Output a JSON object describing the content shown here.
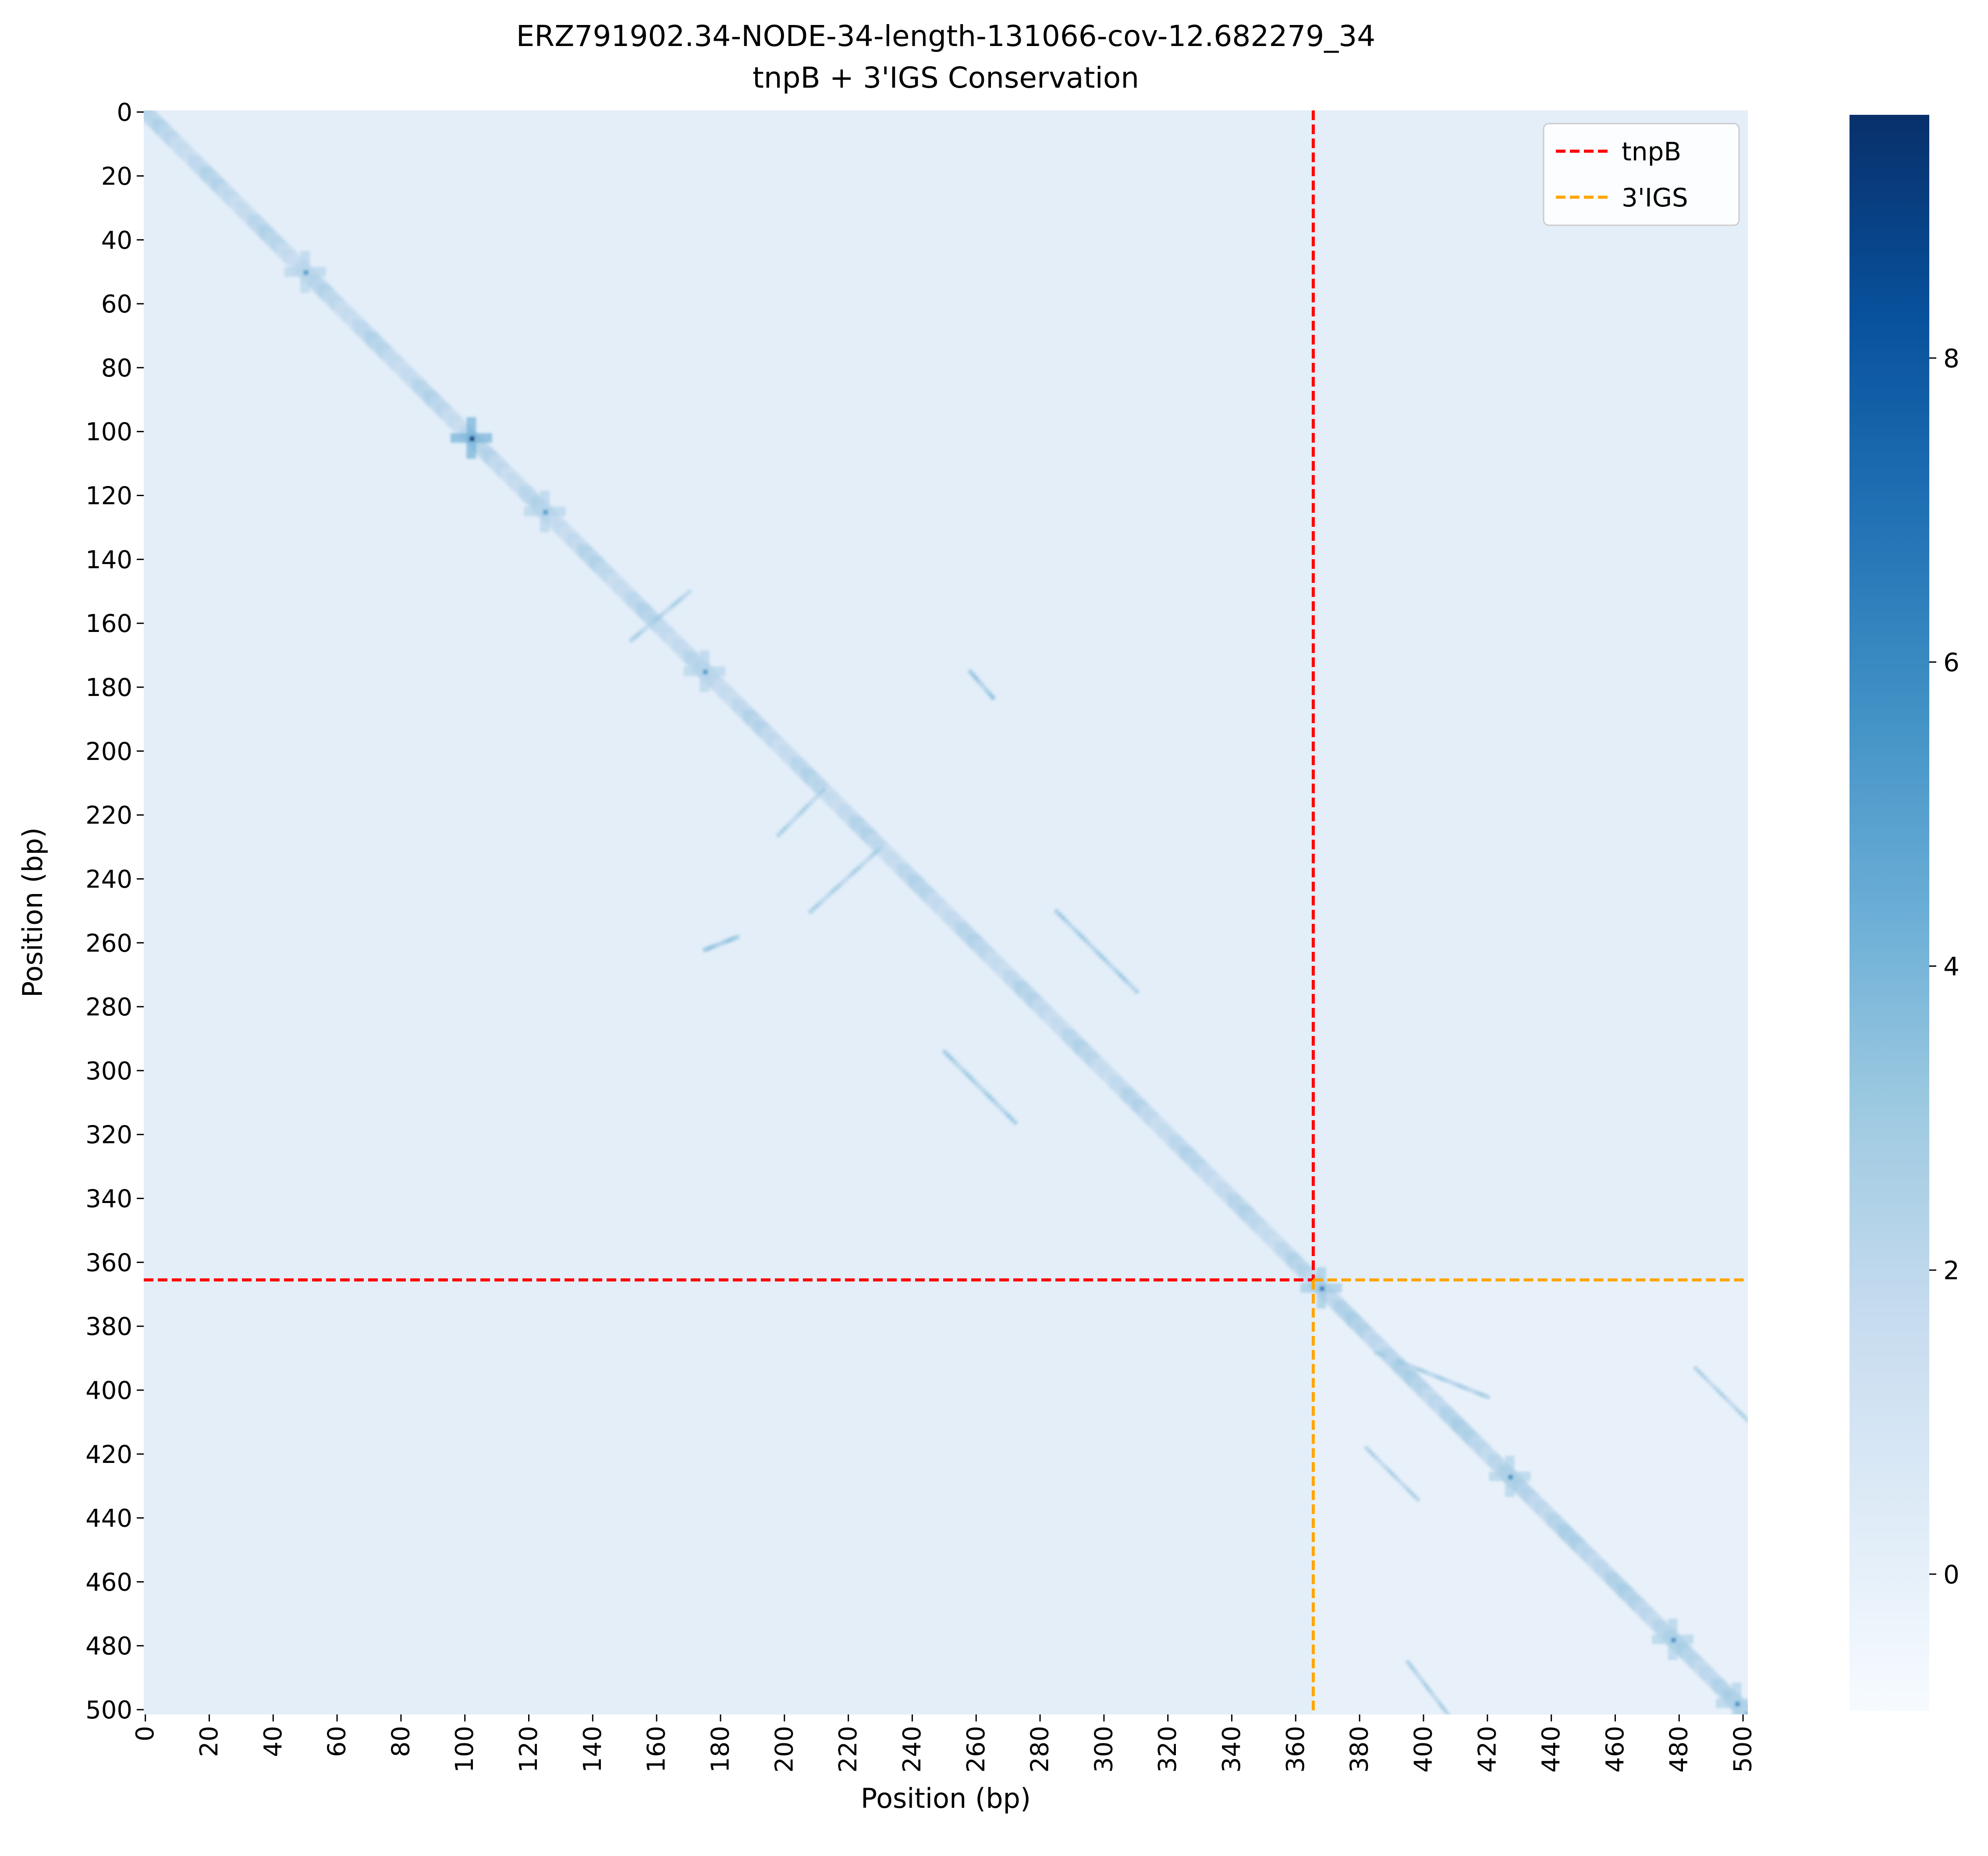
{
  "chart_data": {
    "type": "heatmap",
    "title": "ERZ791902.34-NODE-34-length-131066-cov-12.682279_34",
    "subtitle": "tnpB + 3'IGS Conservation",
    "xlabel": "Position (bp)",
    "ylabel": "Position (bp)",
    "xlim": [
      0,
      502
    ],
    "ylim": [
      0,
      502
    ],
    "x_ticks": [
      "0",
      "20",
      "40",
      "60",
      "80",
      "100",
      "120",
      "140",
      "160",
      "180",
      "200",
      "220",
      "240",
      "260",
      "280",
      "300",
      "320",
      "340",
      "360",
      "380",
      "400",
      "420",
      "440",
      "460",
      "480",
      "500"
    ],
    "y_ticks": [
      "0",
      "20",
      "40",
      "60",
      "80",
      "100",
      "120",
      "140",
      "160",
      "180",
      "200",
      "220",
      "240",
      "260",
      "280",
      "300",
      "320",
      "340",
      "360",
      "380",
      "400",
      "420",
      "440",
      "460",
      "480",
      "500"
    ],
    "colorbar": {
      "colormap": "Blues",
      "range": [
        -0.9,
        9.6
      ],
      "ticks": [
        "0",
        "2",
        "4",
        "6",
        "8"
      ],
      "tick_values": [
        0,
        2,
        4,
        6,
        8
      ]
    },
    "boundaries": [
      {
        "name": "tnpB",
        "position": 366,
        "color": "#ff0000"
      },
      {
        "name": "3'IGS",
        "position": 366,
        "color": "#ffa500"
      }
    ],
    "legend_placement": "upper-right",
    "features": {
      "diagonal_strength": 3.5,
      "hotspots": [
        {
          "x": 102,
          "y": 102,
          "value": 9.2
        },
        {
          "x": 368,
          "y": 368,
          "value": 6.5
        },
        {
          "x": 50,
          "y": 50,
          "value": 5.0
        },
        {
          "x": 125,
          "y": 125,
          "value": 5.0
        },
        {
          "x": 175,
          "y": 175,
          "value": 5.0
        },
        {
          "x": 427,
          "y": 427,
          "value": 5.5
        },
        {
          "x": 478,
          "y": 478,
          "value": 5.5
        },
        {
          "x": 498,
          "y": 498,
          "value": 5.5
        }
      ],
      "off_diagonal_streaks": [
        {
          "x": [
            152,
            170
          ],
          "y": [
            165,
            150
          ],
          "value": 2.5
        },
        {
          "x": [
            198,
            212
          ],
          "y": [
            226,
            212
          ],
          "value": 2.5
        },
        {
          "x": [
            208,
            230
          ],
          "y": [
            250,
            230
          ],
          "value": 2.5
        },
        {
          "x": [
            285,
            310
          ],
          "y": [
            250,
            275
          ],
          "value": 2.8
        },
        {
          "x": [
            250,
            272
          ],
          "y": [
            294,
            316
          ],
          "value": 2.8
        },
        {
          "x": [
            258,
            265
          ],
          "y": [
            175,
            183
          ],
          "value": 3.0
        },
        {
          "x": [
            175,
            185
          ],
          "y": [
            262,
            258
          ],
          "value": 3.0
        },
        {
          "x": [
            385,
            420
          ],
          "y": [
            388,
            402
          ],
          "value": 2.5
        },
        {
          "x": [
            382,
            398
          ],
          "y": [
            418,
            434
          ],
          "value": 2.5
        },
        {
          "x": [
            395,
            408
          ],
          "y": [
            485,
            502
          ],
          "value": 2.5
        },
        {
          "x": [
            485,
            502
          ],
          "y": [
            393,
            410
          ],
          "value": 2.5
        }
      ]
    }
  }
}
